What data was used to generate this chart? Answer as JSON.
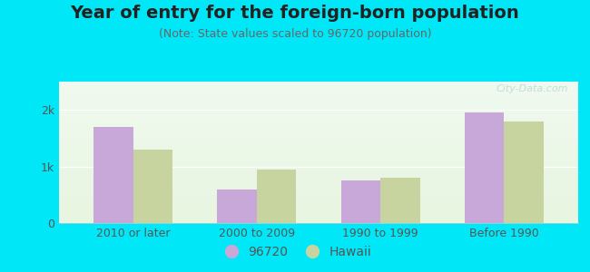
{
  "title": "Year of entry for the foreign-born population",
  "subtitle": "(Note: State values scaled to 96720 population)",
  "categories": [
    "2010 or later",
    "2000 to 2009",
    "1990 to 1999",
    "Before 1990"
  ],
  "values_96720": [
    1700,
    600,
    750,
    1950
  ],
  "values_hawaii": [
    1300,
    950,
    800,
    1800
  ],
  "color_96720": "#c8a8d8",
  "color_hawaii": "#c8d4a0",
  "background_outer": "#00e8f8",
  "yticks": [
    0,
    1000,
    2000
  ],
  "ytick_labels": [
    "0",
    "1k",
    "2k"
  ],
  "ylim": [
    0,
    2500
  ],
  "bar_width": 0.32,
  "legend_96720": "96720",
  "legend_hawaii": "Hawaii",
  "title_fontsize": 14,
  "subtitle_fontsize": 9,
  "tick_fontsize": 9,
  "legend_fontsize": 10
}
